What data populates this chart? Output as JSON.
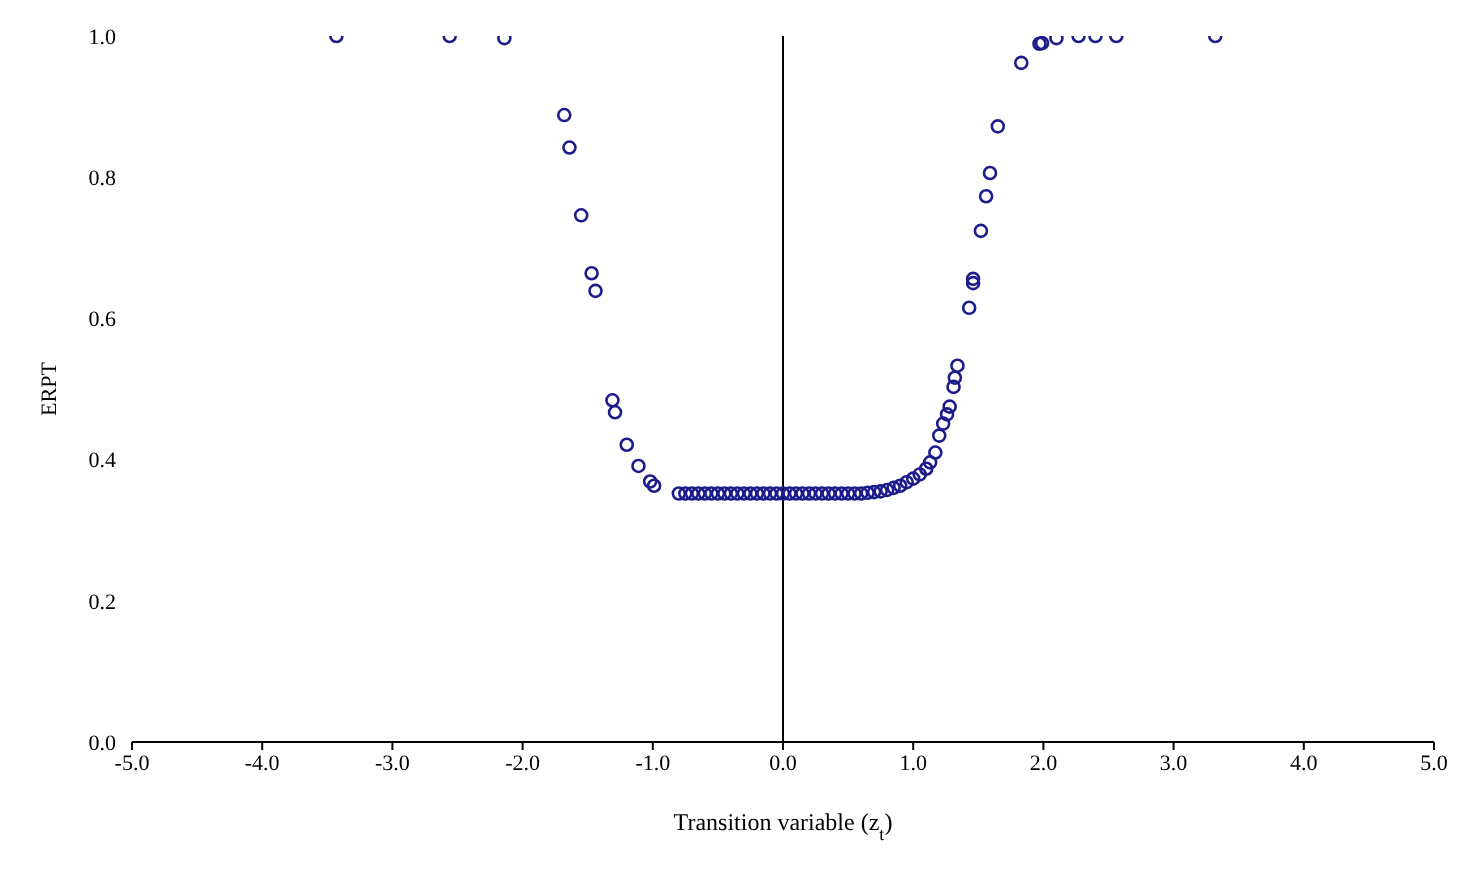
{
  "chart_data": {
    "type": "scatter",
    "xlabel": "Transition variable (z$_{t}$)",
    "ylabel": "ERPT",
    "x": [
      -3.43,
      -2.56,
      -2.14,
      -1.68,
      -1.64,
      -1.55,
      -1.47,
      -1.44,
      -1.31,
      -1.29,
      -1.2,
      -1.11,
      -1.02,
      -0.99,
      -0.8,
      -0.75,
      -0.7,
      -0.65,
      -0.6,
      -0.55,
      -0.5,
      -0.45,
      -0.4,
      -0.35,
      -0.3,
      -0.25,
      -0.2,
      -0.15,
      -0.1,
      -0.05,
      0,
      0.05,
      0.1,
      0.15,
      0.2,
      0.25,
      0.3,
      0.35,
      0.4,
      0.45,
      0.5,
      0.55,
      0.6,
      0.65,
      0.7,
      0.75,
      0.8,
      0.85,
      0.9,
      0.95,
      1.0,
      1.05,
      1.1,
      1.13,
      1.17,
      1.2,
      1.23,
      1.26,
      1.28,
      1.31,
      1.32,
      1.34,
      1.43,
      1.46,
      1.46,
      1.52,
      1.56,
      1.59,
      1.65,
      1.83,
      1.97,
      1.99,
      2.1,
      2.27,
      2.4,
      2.56,
      3.32
    ],
    "series": [
      {
        "color": "#1c1c8c",
        "values": [
          1.0,
          1.0,
          0.997,
          0.888,
          0.842,
          0.746,
          0.664,
          0.639,
          0.484,
          0.467,
          0.421,
          0.391,
          0.369,
          0.363,
          0.352,
          0.352,
          0.352,
          0.352,
          0.352,
          0.352,
          0.352,
          0.352,
          0.352,
          0.352,
          0.352,
          0.352,
          0.352,
          0.352,
          0.352,
          0.352,
          0.352,
          0.352,
          0.352,
          0.352,
          0.352,
          0.352,
          0.352,
          0.352,
          0.352,
          0.352,
          0.352,
          0.352,
          0.352,
          0.353,
          0.354,
          0.355,
          0.357,
          0.36,
          0.363,
          0.368,
          0.373,
          0.379,
          0.387,
          0.396,
          0.41,
          0.434,
          0.451,
          0.464,
          0.475,
          0.503,
          0.516,
          0.533,
          0.615,
          0.65,
          0.656,
          0.724,
          0.773,
          0.806,
          0.872,
          0.962,
          0.989,
          0.99,
          0.997,
          1.0,
          1.0,
          1.0,
          1.0
        ]
      }
    ],
    "xlim": [
      -5,
      5
    ],
    "xticks": [
      {
        "value": -5,
        "label": "-5.0"
      },
      {
        "value": -4,
        "label": "-4.0"
      },
      {
        "value": -3,
        "label": "-3.0"
      },
      {
        "value": -2,
        "label": "-2.0"
      },
      {
        "value": -1,
        "label": "-1.0"
      },
      {
        "value": 0,
        "label": "0.0"
      },
      {
        "value": 1,
        "label": "1.0"
      },
      {
        "value": 2,
        "label": "2.0"
      },
      {
        "value": 3,
        "label": "3.0"
      },
      {
        "value": 4,
        "label": "4.0"
      },
      {
        "value": 5,
        "label": "5.0"
      }
    ],
    "ylim": [
      0,
      1
    ],
    "yticks": [
      {
        "value": 0,
        "label": "0.0"
      },
      {
        "value": 0.2,
        "label": "0.2"
      },
      {
        "value": 0.4,
        "label": "0.4"
      },
      {
        "value": 0.6,
        "label": "0.6"
      },
      {
        "value": 0.8,
        "label": "0.8"
      },
      {
        "value": 1,
        "label": "1.0"
      }
    ],
    "ref_lines": [
      {
        "axis": "x",
        "value": 0,
        "color": "#000000"
      }
    ],
    "grid": false,
    "legend": false,
    "marker": "circle"
  }
}
